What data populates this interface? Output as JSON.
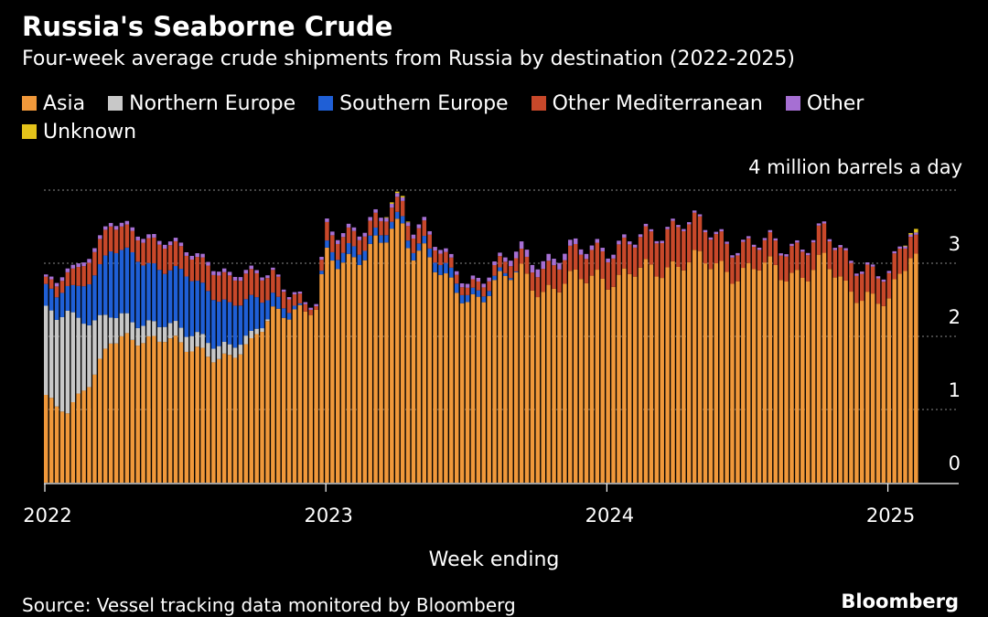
{
  "chart_data": {
    "type": "bar",
    "stacked": true,
    "title": "Russia's Seaborne Crude",
    "subtitle": "Four-week average crude shipments from Russia by destination (2022-2025)",
    "ylabel": "4 million barrels a day",
    "xlabel": "Week ending",
    "ylim": [
      0,
      4
    ],
    "yticks": [
      "0",
      "1",
      "2",
      "3"
    ],
    "xticks": [
      {
        "label": "2022",
        "week": 0
      },
      {
        "label": "2023",
        "week": 52
      },
      {
        "label": "2024",
        "week": 104
      },
      {
        "label": "2025",
        "week": 156
      }
    ],
    "x_start": "2022",
    "n_weeks": 162,
    "grid": true,
    "legend_position": "top-left",
    "series": [
      {
        "name": "Asia",
        "color": "#f0983a",
        "values": []
      },
      {
        "name": "Northern Europe",
        "color": "#c8c8c8",
        "values": []
      },
      {
        "name": "Southern Europe",
        "color": "#1f5fd6",
        "values": []
      },
      {
        "name": "Other Mediterranean",
        "color": "#c8482a",
        "values": []
      },
      {
        "name": "Other",
        "color": "#a66fd3",
        "values": []
      },
      {
        "name": "Unknown",
        "color": "#e3c21a",
        "values": []
      }
    ],
    "anchors": {
      "weeks": [
        0,
        2,
        4,
        8,
        12,
        16,
        22,
        26,
        30,
        34,
        38,
        42,
        46,
        48,
        50,
        52,
        56,
        62,
        64,
        66,
        68,
        70,
        74,
        78,
        84,
        88,
        92,
        98,
        102,
        106,
        112,
        118,
        124,
        128,
        132,
        136,
        140,
        144,
        148,
        152,
        154,
        156,
        158,
        160,
        161
      ],
      "Asia": [
        1.2,
        1.0,
        0.95,
        1.4,
        1.95,
        1.9,
        2.05,
        1.8,
        1.75,
        1.75,
        1.85,
        2.35,
        2.4,
        2.3,
        2.35,
        3.05,
        3.1,
        3.2,
        3.45,
        3.5,
        3.25,
        3.2,
        2.7,
        2.5,
        2.75,
        2.85,
        2.65,
        2.75,
        2.85,
        2.8,
        2.9,
        3.05,
        2.95,
        2.9,
        2.95,
        2.85,
        2.9,
        3.0,
        2.65,
        2.6,
        2.5,
        2.45,
        2.75,
        3.15,
        3.1
      ],
      "Northern Europe": [
        1.15,
        1.2,
        1.35,
        0.85,
        0.35,
        0.25,
        0.2,
        0.2,
        0.2,
        0.15,
        0.1,
        0.0,
        0.0,
        0.0,
        0.0,
        0.0,
        0.0,
        0.0,
        0.0,
        0.0,
        0.0,
        0.0,
        0.0,
        0.0,
        0.0,
        0.0,
        0.0,
        0.0,
        0.0,
        0.0,
        0.0,
        0.0,
        0.0,
        0.0,
        0.0,
        0.0,
        0.0,
        0.0,
        0.0,
        0.0,
        0.0,
        0.0,
        0.0,
        0.0,
        0.0
      ],
      "Southern Europe": [
        0.3,
        0.3,
        0.35,
        0.55,
        0.85,
        0.95,
        0.7,
        0.8,
        0.7,
        0.55,
        0.5,
        0.2,
        0.05,
        0.0,
        0.0,
        0.1,
        0.15,
        0.1,
        0.1,
        0.1,
        0.1,
        0.1,
        0.15,
        0.1,
        0.05,
        0.0,
        0.0,
        0.0,
        0.0,
        0.0,
        0.0,
        0.0,
        0.0,
        0.0,
        0.0,
        0.0,
        0.0,
        0.0,
        0.0,
        0.0,
        0.0,
        0.0,
        0.0,
        0.0,
        0.0
      ],
      "Other Mediterranean": [
        0.1,
        0.15,
        0.2,
        0.3,
        0.35,
        0.3,
        0.35,
        0.3,
        0.35,
        0.35,
        0.35,
        0.3,
        0.15,
        0.1,
        0.05,
        0.25,
        0.2,
        0.2,
        0.2,
        0.2,
        0.2,
        0.2,
        0.15,
        0.1,
        0.15,
        0.2,
        0.3,
        0.35,
        0.35,
        0.4,
        0.45,
        0.55,
        0.4,
        0.35,
        0.3,
        0.35,
        0.35,
        0.4,
        0.4,
        0.35,
        0.35,
        0.35,
        0.35,
        0.3,
        0.25
      ],
      "Other": [
        0.03,
        0.05,
        0.05,
        0.05,
        0.05,
        0.05,
        0.05,
        0.05,
        0.05,
        0.05,
        0.05,
        0.03,
        0.03,
        0.03,
        0.03,
        0.05,
        0.05,
        0.05,
        0.05,
        0.05,
        0.05,
        0.05,
        0.05,
        0.05,
        0.05,
        0.1,
        0.1,
        0.08,
        0.05,
        0.05,
        0.03,
        0.03,
        0.03,
        0.03,
        0.03,
        0.03,
        0.03,
        0.03,
        0.03,
        0.03,
        0.03,
        0.03,
        0.03,
        0.03,
        0.03
      ],
      "Unknown": [
        0.0,
        0.0,
        0.0,
        0.0,
        0.0,
        0.0,
        0.0,
        0.0,
        0.0,
        0.0,
        0.0,
        0.0,
        0.0,
        0.0,
        0.0,
        0.0,
        0.0,
        0.0,
        0.02,
        0.02,
        0.0,
        0.0,
        0.0,
        0.0,
        0.0,
        0.0,
        0.0,
        0.0,
        0.0,
        0.0,
        0.0,
        0.0,
        0.0,
        0.0,
        0.0,
        0.0,
        0.0,
        0.0,
        0.0,
        0.0,
        0.0,
        0.0,
        0.0,
        0.02,
        0.05
      ]
    }
  },
  "source_text": "Source: Vessel tracking data monitored by Bloomberg",
  "brand_text": "Bloomberg"
}
